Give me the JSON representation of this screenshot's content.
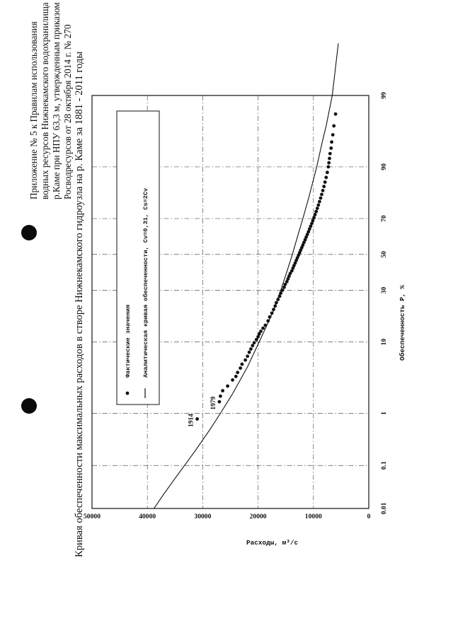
{
  "header": {
    "appendix_lines": [
      "Приложение № 5 к Правилам использования",
      "водных ресурсов Нижнекамского водохранилища на",
      "р.Каме при НПУ 63,3 м, утвержденным приказом",
      "Росводресурсов от 28 октября 2014 г. № 270"
    ]
  },
  "chart_data": {
    "type": "scatter",
    "title": "Кривая обеспеченности максимальных расходов в створе Нижнекамского гидроузла на р. Каме за 1881 - 2011 годы",
    "xlabel": "Обеспеченность P, %",
    "ylabel": "Расходы, м³/с",
    "x_scale": "probability",
    "x_ticks": [
      "0.01",
      "0.1",
      "1",
      "10",
      "30",
      "50",
      "70",
      "90",
      "99"
    ],
    "y_ticks": [
      "0",
      "10000",
      "20000",
      "30000",
      "40000",
      "50000"
    ],
    "ylim": [
      0,
      50000
    ],
    "grid": true,
    "legend_position": "top-right",
    "legend": [
      {
        "marker": "dot",
        "label": "Фактические значения"
      },
      {
        "marker": "line",
        "label": "Аналитическая кривая обеспеченности, Cv=0,31, Cs=2Cv"
      }
    ],
    "annotations": [
      {
        "text": "1914",
        "x": 0.8,
        "y": 31000
      },
      {
        "text": "1979",
        "x": 1.55,
        "y": 27000
      }
    ],
    "series": [
      {
        "kind": "points",
        "x": [
          0.8,
          1.55,
          1.9,
          2.3,
          2.7,
          3.3,
          3.7,
          4.2,
          4.8,
          5.4,
          6.1,
          6.8,
          7.6,
          8.3,
          9.1,
          9.8,
          10.6,
          11.4,
          12.2,
          13.0,
          14.0,
          15.0,
          16.5,
          18.0,
          19.5,
          21.0,
          22.5,
          24.0,
          25.5,
          27.0,
          28.5,
          30.0,
          31.5,
          33.0,
          34.5,
          36.0,
          37.5,
          39.0,
          40.5,
          42.0,
          43.5,
          45.0,
          46.5,
          48.0,
          49.5,
          51.0,
          52.5,
          54.0,
          55.5,
          57.0,
          58.5,
          60.0,
          61.5,
          63.0,
          64.5,
          66.0,
          67.5,
          69.0,
          70.5,
          72.0,
          73.5,
          75.0,
          76.5,
          78.0,
          79.5,
          81.0,
          82.5,
          84.0,
          85.5,
          87.0,
          88.5,
          90.0,
          91.0,
          92.0,
          93.0,
          94.0,
          95.0,
          96.0,
          97.0,
          98.0,
          99.2
        ],
        "y": [
          31000,
          27000,
          26800,
          26400,
          25500,
          24600,
          24000,
          23700,
          23200,
          22900,
          22300,
          21900,
          21600,
          21300,
          21000,
          20700,
          20300,
          20000,
          19800,
          19500,
          19100,
          18700,
          18200,
          17900,
          17500,
          17200,
          16900,
          16700,
          16400,
          16100,
          15900,
          15600,
          15300,
          15100,
          14800,
          14600,
          14400,
          14200,
          13900,
          13700,
          13500,
          13300,
          13100,
          12900,
          12700,
          12500,
          12300,
          12100,
          11900,
          11700,
          11500,
          11300,
          11100,
          10900,
          10700,
          10500,
          10300,
          10100,
          9900,
          9700,
          9500,
          9300,
          9100,
          8900,
          8700,
          8500,
          8300,
          8100,
          7900,
          7700,
          7500,
          7300,
          7200,
          7100,
          7000,
          6800,
          6700,
          6500,
          6300,
          6000,
          5600
        ]
      },
      {
        "kind": "curve",
        "x": [
          0.01,
          0.02,
          0.05,
          0.1,
          0.2,
          0.5,
          1,
          2,
          5,
          10,
          20,
          30,
          40,
          50,
          60,
          70,
          80,
          90,
          95,
          97,
          99,
          99.9
        ],
        "y": [
          38800,
          37300,
          35100,
          33300,
          31400,
          28800,
          26800,
          24700,
          21900,
          19800,
          17300,
          15900,
          14800,
          13800,
          12900,
          11900,
          10800,
          9400,
          8400,
          7700,
          6600,
          5500
        ]
      }
    ]
  }
}
